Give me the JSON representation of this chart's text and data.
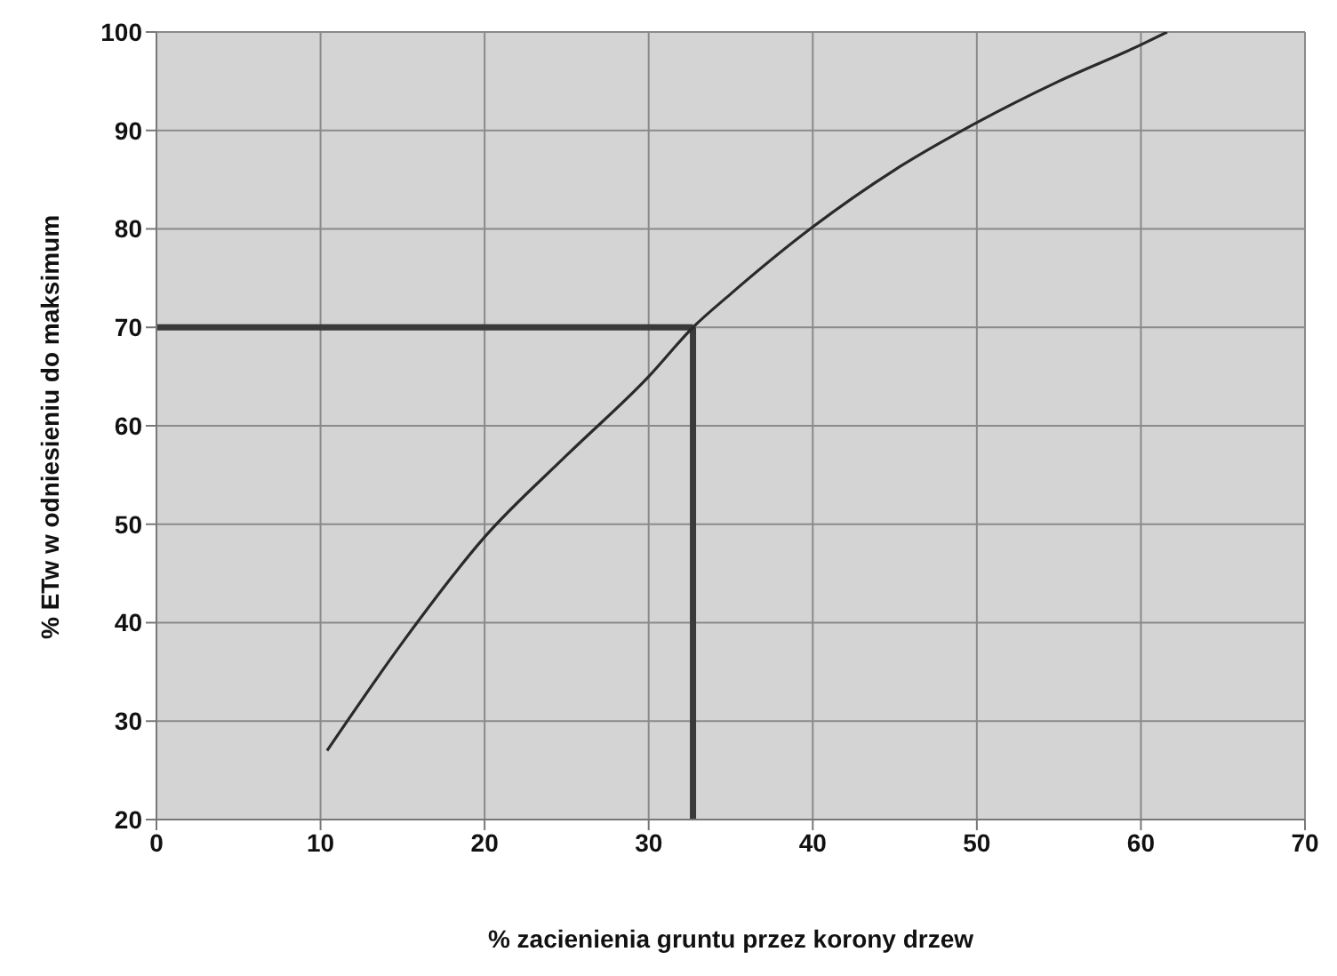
{
  "chart_data": {
    "type": "line",
    "xlabel": "% zacienienia gruntu przez korony drzew",
    "ylabel": "% ETw  w odniesieniu do maksimum",
    "series": [
      {
        "color": "#2a2a2a",
        "x": [
          10.4,
          15,
          20,
          25,
          30,
          32.7,
          35,
          40,
          45,
          50,
          55,
          60,
          61.6
        ],
        "values": [
          27,
          38,
          48.7,
          57,
          65,
          70,
          73.4,
          80.2,
          86,
          90.8,
          95,
          98.7,
          100
        ]
      }
    ],
    "xlim": [
      0,
      70
    ],
    "xticks": [
      0,
      10,
      20,
      30,
      40,
      50,
      60,
      70
    ],
    "ylim": [
      20,
      100
    ],
    "yticks": [
      20,
      30,
      40,
      50,
      60,
      70,
      80,
      90,
      100
    ],
    "grid": true,
    "marker": "none",
    "line_style": "solid",
    "ref_lines": [
      {
        "axis": "y",
        "value": 70,
        "color": "#3a3a3a"
      },
      {
        "axis": "x",
        "value": 32.7,
        "color": "#3a3a3a"
      }
    ]
  }
}
